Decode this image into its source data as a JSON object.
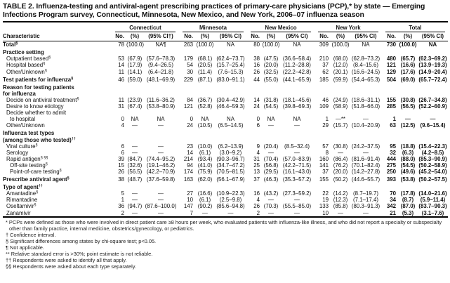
{
  "title": "TABLE 2. Influenza-testing and antiviral-agent prescribing practices of primary-care physicians (PCP),* by state — Emerging Infections Program survey, Connecticut, Minnesota, New Mexico, and New York, 2006–07 influenza season",
  "header": {
    "characteristic": "Characteristic",
    "groups": [
      "Connecticut",
      "Minnesota",
      "New Mexico",
      "New York",
      "Total"
    ],
    "subcols": [
      [
        "No.",
        "(%)",
        "(95% CI†)"
      ],
      [
        "No.",
        "(%)",
        "(95% CI)"
      ],
      [
        "No.",
        "(%)",
        "(95% CI)"
      ],
      [
        "No.",
        "(%)",
        "(95% CI)"
      ],
      [
        "No.",
        "(%)",
        "(95% CI)"
      ]
    ]
  },
  "rows": [
    {
      "label": "Total",
      "sup": "§",
      "style": "b",
      "cells": [
        "78",
        "(100.0)",
        "NA¶",
        "263",
        "(100.0)",
        "NA",
        "80",
        "(100.0)",
        "NA",
        "309",
        "(100.0)",
        "NA",
        "730",
        "(100.0)",
        "NA"
      ]
    },
    {
      "label": "Practice setting",
      "sup": "",
      "style": "b sec",
      "cells": []
    },
    {
      "label": "Outpatient based",
      "sup": "§",
      "style": "i1",
      "cells": [
        "53",
        "(67.9)",
        "(57.6–78.3)",
        "179",
        "(68.1)",
        "(62.4–73.7)",
        "38",
        "(47.5)",
        "(36.6–58.4)",
        "210",
        "(68.0)",
        "(62.8–73.2)",
        "480",
        "(65.7)",
        "(62.3–69.2)"
      ]
    },
    {
      "label": "Hospital based",
      "sup": "§",
      "style": "i1",
      "cells": [
        "14",
        "(17.9)",
        "(9.4–26.5)",
        "54",
        "(20.5)",
        "(15.7–25.4)",
        "16",
        "(20.0)",
        "(11.2–28.8)",
        "37",
        "(12.0)",
        "(8.4–15.6)",
        "121",
        "(16.6)",
        "(13.9–19.3)"
      ]
    },
    {
      "label": "Other/Unknown",
      "sup": "§",
      "style": "i1",
      "cells": [
        "11",
        "(14.1)",
        "(6.4–21.8)",
        "30",
        "(11.4)",
        "(7.6–15.3)",
        "26",
        "(32.5)",
        "(22.2–42.8)",
        "62",
        "(20.1)",
        "(16.6–24.5)",
        "129",
        "(17.6)",
        "(14.9–20.4)"
      ]
    },
    {
      "label": "Test patients for influenza",
      "sup": "§",
      "style": "b sec",
      "cells": [
        "46",
        "(59.0)",
        "(48.1–69.9)",
        "229",
        "(87.1)",
        "(83.0–91.1)",
        "44",
        "(55.0)",
        "(44.1–65.9)",
        "185",
        "(59.9)",
        "(54.4–65.3)",
        "504",
        "(69.0)",
        "(65.7–72.4)"
      ]
    },
    {
      "label": "Reason for testing patients",
      "sup": "",
      "style": "b sec",
      "cells": []
    },
    {
      "label": "for influenza",
      "sup": "",
      "style": "b i0",
      "cells": []
    },
    {
      "label": "Decide on antiviral treatment",
      "sup": "§",
      "style": "i1",
      "cells": [
        "11",
        "(23.9)",
        "(11.6–36.2)",
        "84",
        "(36.7)",
        "(30.4–42.9)",
        "14",
        "(31.8)",
        "(18.1–45.6)",
        "46",
        "(24.9)",
        "(18.6–31.1)",
        "155",
        "(30.8)",
        "(26.7–34.8)"
      ]
    },
    {
      "label": "Desire to know etiology",
      "sup": "",
      "style": "i1",
      "cells": [
        "31",
        "(67.4)",
        "(53.8–80.9)",
        "121",
        "(52.8)",
        "(46.4–59.3)",
        "24",
        "(54.5)",
        "(39.8–69.3)",
        "109",
        "(58.9)",
        "(51.8–66.0)",
        "285",
        "(56.5)",
        "(52.2–60.9)"
      ]
    },
    {
      "label": "Decide whether to admit",
      "sup": "",
      "style": "i1",
      "cells": []
    },
    {
      "label": "to hospital",
      "sup": "",
      "style": "i2",
      "cells": [
        "0",
        "NA",
        "NA",
        "0",
        "NA",
        "NA",
        "0",
        "NA",
        "NA",
        "1",
        "—**",
        "—",
        "1",
        "—",
        "—"
      ]
    },
    {
      "label": "Other/Unknown",
      "sup": "",
      "style": "i1",
      "cells": [
        "4",
        "—",
        "—",
        "24",
        "(10.5)",
        "(6.5–14.5)",
        "6",
        "—",
        "—",
        "29",
        "(15.7)",
        "(10.4–20.9)",
        "63",
        "(12.5)",
        "(9.6–15.4)"
      ]
    },
    {
      "label": "Influenza test types",
      "sup": "",
      "style": "b sec",
      "cells": []
    },
    {
      "label": "(among those who tested)",
      "sup": "††",
      "style": "b i0",
      "cells": []
    },
    {
      "label": "Viral culture",
      "sup": "§",
      "style": "i1",
      "cells": [
        "6",
        "—",
        "—",
        "23",
        "(10.0)",
        "(6.2–13.9)",
        "9",
        "(20.4)",
        "(8.5–32.4)",
        "57",
        "(30.8)",
        "(24.2–37.5)",
        "95",
        "(18.8)",
        "(15.4–22.3)"
      ]
    },
    {
      "label": "Serology",
      "sup": "",
      "style": "i1",
      "cells": [
        "6",
        "—",
        "—",
        "14",
        "(6.1)",
        "(3.0–9.2)",
        "4",
        "—",
        "—",
        "8",
        "—",
        "—",
        "32",
        "(6.3)",
        "(4.2–8.5)"
      ]
    },
    {
      "label": "Rapid antigen",
      "sup": "§ §§",
      "style": "i1",
      "cells": [
        "39",
        "(84.7)",
        "(74.4–95.2)",
        "214",
        "(93.4)",
        "(90.3–96.7)",
        "31",
        "(70.4)",
        "(57.0–83.9)",
        "160",
        "(86.4)",
        "(81.6–91.4)",
        "444",
        "(88.0)",
        "(85.3–90.9)"
      ]
    },
    {
      "label": "Off-site testing",
      "sup": "§",
      "style": "i2",
      "cells": [
        "15",
        "(32.6)",
        "(19.1–46.2)",
        "94",
        "(41.0)",
        "(34.7–47.2)",
        "25",
        "(56.8)",
        "(42.2–71.5)",
        "141",
        "(76.2)",
        "(70.1–82.4)",
        "275",
        "(54.5)",
        "(50.2–58.9)"
      ]
    },
    {
      "label": "Point-of-care testing",
      "sup": "§",
      "style": "i2",
      "cells": [
        "26",
        "(56.5)",
        "(42.2–70.9)",
        "174",
        "(75.9)",
        "(70.5–81.5)",
        "13",
        "(29.5)",
        "(16.1–43.0)",
        "37",
        "(20.0)",
        "(14.2–27.8)",
        "250",
        "(49.6)",
        "(45.2–54.0)"
      ]
    },
    {
      "label": "Prescribe antiviral agent",
      "sup": "§",
      "style": "b sec",
      "cells": [
        "38",
        "(48.7)",
        "(37.6–59.8)",
        "163",
        "(62.0)",
        "(56.1–67.9)",
        "37",
        "(46.3)",
        "(35.3–57.2)",
        "155",
        "(50.2)",
        "(44.6–55.7)",
        "393",
        "(53.8)",
        "(50.2–57.5)"
      ]
    },
    {
      "label": "Type of agent",
      "sup": "††",
      "style": "b sec",
      "cells": []
    },
    {
      "label": "Amantadine",
      "sup": "§",
      "style": "i1",
      "cells": [
        "5",
        "—",
        "—",
        "27",
        "(16.6)",
        "(10.9–22.3)",
        "16",
        "(43.2)",
        "(27.3–59.2)",
        "22",
        "(14.2)",
        "(8.7–19.7)",
        "70",
        "(17.8)",
        "(14.0–21.6)"
      ]
    },
    {
      "label": "Rimantadine",
      "sup": "",
      "style": "i1",
      "cells": [
        "1",
        "—",
        "—",
        "10",
        "(6.1)",
        "(2.5–9.8)",
        "4",
        "—",
        "—",
        "19",
        "(12.3)",
        "(7.1–17.4)",
        "34",
        "(8.7)",
        "(5.9–11.4)"
      ]
    },
    {
      "label": "Oseltamivir",
      "sup": "§",
      "style": "i1",
      "cells": [
        "36",
        "(94.7)",
        "(87.6–100.0)",
        "147",
        "(90.2)",
        "(85.6–94.8)",
        "26",
        "(70.3)",
        "(55.5–85.0)",
        "133",
        "(85.8)",
        "(80.3–91.3)",
        "342",
        "(87.0)",
        "(83.7–90.3)"
      ]
    },
    {
      "label": "Zanamivir",
      "sup": "",
      "style": "i1",
      "cells": [
        "2",
        "—",
        "—",
        "7",
        "—",
        "—",
        "2",
        "—",
        "—",
        "10",
        "—",
        "—",
        "21",
        "(5.3)",
        "(3.1–7.6)"
      ]
    }
  ],
  "footnotes": [
    "* PCPs were defined as those who were involved in direct patient care ≥8 hours per week, who evaluated patients with influenza-like illness, and who did not report a specialty or subspecialty other than family practice, internal medicine, obstetrics/gynecology, or pediatrics.",
    "† Confidence interval.",
    "§ Significant differences among states by chi-square test; p<0.05.",
    "¶ Not applicable.",
    "** Relative standard error is >30%; point estimate is not reliable.",
    "†† Respondents were asked to identify all that apply.",
    "§§ Respondents were asked about each type separately."
  ]
}
